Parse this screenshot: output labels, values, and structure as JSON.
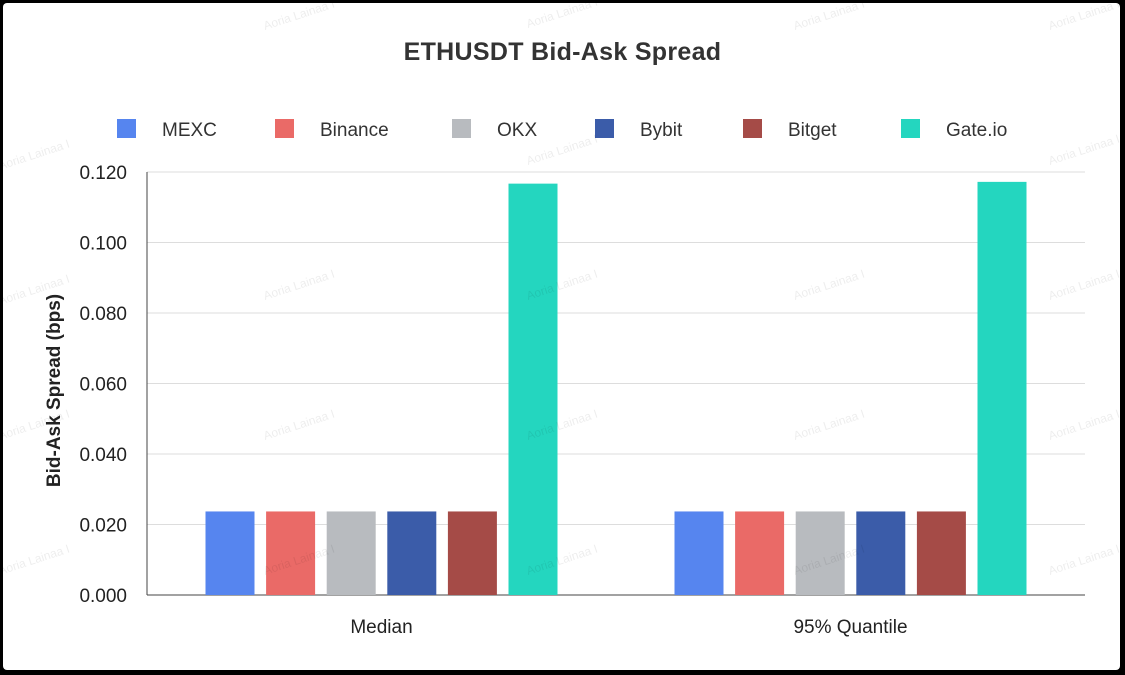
{
  "chart_data": {
    "type": "bar",
    "title": "ETHUSDT Bid-Ask Spread",
    "xlabel": "",
    "ylabel": "Bid-Ask Spread (bps)",
    "categories": [
      "Median",
      "95% Quantile"
    ],
    "series": [
      {
        "name": "MEXC",
        "color": "#5685ef",
        "values": [
          0.0237,
          0.0237
        ]
      },
      {
        "name": "Binance",
        "color": "#ea6a67",
        "values": [
          0.0237,
          0.0237
        ]
      },
      {
        "name": "OKX",
        "color": "#b8bbbf",
        "values": [
          0.0237,
          0.0237
        ]
      },
      {
        "name": "Bybit",
        "color": "#3b5ca9",
        "values": [
          0.0237,
          0.0237
        ]
      },
      {
        "name": "Bitget",
        "color": "#a54b47",
        "values": [
          0.0237,
          0.0237
        ]
      },
      {
        "name": "Gate.io",
        "color": "#24d6bf",
        "values": [
          0.1167,
          0.1172
        ]
      }
    ],
    "ylim": [
      0,
      0.12
    ],
    "yticks": [
      "0.000",
      "0.020",
      "0.040",
      "0.060",
      "0.080",
      "0.100",
      "0.120"
    ],
    "grid": true,
    "legend_position": "top"
  },
  "watermark": "Aoria Lainaa I"
}
